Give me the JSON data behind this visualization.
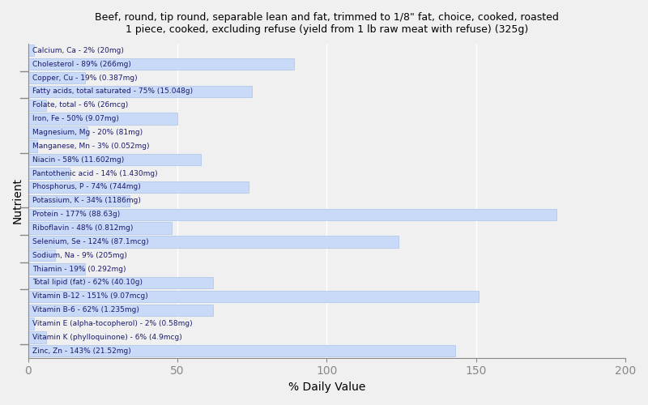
{
  "title": "Beef, round, tip round, separable lean and fat, trimmed to 1/8\" fat, choice, cooked, roasted\n1 piece, cooked, excluding refuse (yield from 1 lb raw meat with refuse) (325g)",
  "xlabel": "% Daily Value",
  "ylabel": "Nutrient",
  "xlim": [
    0,
    200
  ],
  "xticks": [
    0,
    50,
    100,
    150,
    200
  ],
  "bar_color": "#c9daf8",
  "bar_edge_color": "#aac4e8",
  "background_color": "#f0f0f0",
  "text_color": "#1a1a6e",
  "spine_color": "#888888",
  "grid_color": "#ffffff",
  "nutrients": [
    {
      "label": "Calcium, Ca - 2% (20mg)",
      "value": 2
    },
    {
      "label": "Cholesterol - 89% (266mg)",
      "value": 89
    },
    {
      "label": "Copper, Cu - 19% (0.387mg)",
      "value": 19
    },
    {
      "label": "Fatty acids, total saturated - 75% (15.048g)",
      "value": 75
    },
    {
      "label": "Folate, total - 6% (26mcg)",
      "value": 6
    },
    {
      "label": "Iron, Fe - 50% (9.07mg)",
      "value": 50
    },
    {
      "label": "Magnesium, Mg - 20% (81mg)",
      "value": 20
    },
    {
      "label": "Manganese, Mn - 3% (0.052mg)",
      "value": 3
    },
    {
      "label": "Niacin - 58% (11.602mg)",
      "value": 58
    },
    {
      "label": "Pantothenic acid - 14% (1.430mg)",
      "value": 14
    },
    {
      "label": "Phosphorus, P - 74% (744mg)",
      "value": 74
    },
    {
      "label": "Potassium, K - 34% (1186mg)",
      "value": 34
    },
    {
      "label": "Protein - 177% (88.63g)",
      "value": 177
    },
    {
      "label": "Riboflavin - 48% (0.812mg)",
      "value": 48
    },
    {
      "label": "Selenium, Se - 124% (87.1mcg)",
      "value": 124
    },
    {
      "label": "Sodium, Na - 9% (205mg)",
      "value": 9
    },
    {
      "label": "Thiamin - 19% (0.292mg)",
      "value": 19
    },
    {
      "label": "Total lipid (fat) - 62% (40.10g)",
      "value": 62
    },
    {
      "label": "Vitamin B-12 - 151% (9.07mcg)",
      "value": 151
    },
    {
      "label": "Vitamin B-6 - 62% (1.235mg)",
      "value": 62
    },
    {
      "label": "Vitamin E (alpha-tocopherol) - 2% (0.58mg)",
      "value": 2
    },
    {
      "label": "Vitamin K (phylloquinone) - 6% (4.9mcg)",
      "value": 6
    },
    {
      "label": "Zinc, Zn - 143% (21.52mg)",
      "value": 143
    }
  ],
  "tick_groups": [
    1.5,
    3.5,
    7.5,
    11.5,
    13.5,
    15.5,
    17.5,
    21.5
  ]
}
